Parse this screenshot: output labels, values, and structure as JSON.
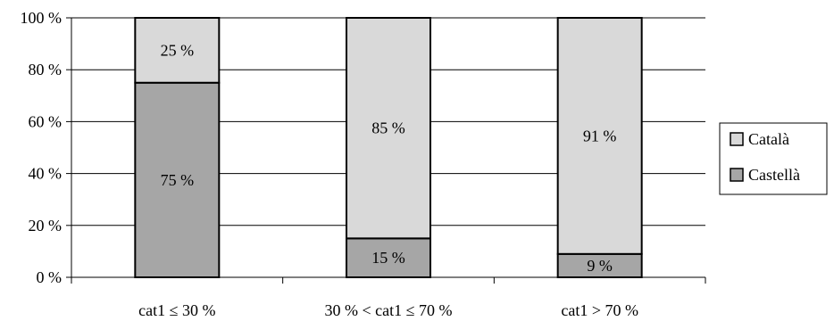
{
  "chart_data": {
    "type": "bar",
    "stacked": true,
    "categories": [
      "cat1 ≤ 30 %",
      "30 % < cat1 ≤ 70 %",
      "cat1 > 70 %"
    ],
    "series": [
      {
        "name": "Castellà",
        "values": [
          75,
          15,
          9
        ],
        "labels": [
          "75 %",
          "15 %",
          "9 %"
        ],
        "color": "#a6a6a6"
      },
      {
        "name": "Català",
        "values": [
          25,
          85,
          91
        ],
        "labels": [
          "25 %",
          "85 %",
          "91 %"
        ],
        "color": "#d9d9d9"
      }
    ],
    "ylim": [
      0,
      100
    ],
    "yticks": [
      0,
      20,
      40,
      60,
      80,
      100
    ],
    "ytick_labels": [
      "0 %",
      "20 %",
      "40 %",
      "60 %",
      "80 %",
      "100 %"
    ],
    "grid": true,
    "legend_position": "right",
    "legend_order": [
      "Català",
      "Castellà"
    ],
    "title": "",
    "xlabel": "",
    "ylabel": ""
  }
}
